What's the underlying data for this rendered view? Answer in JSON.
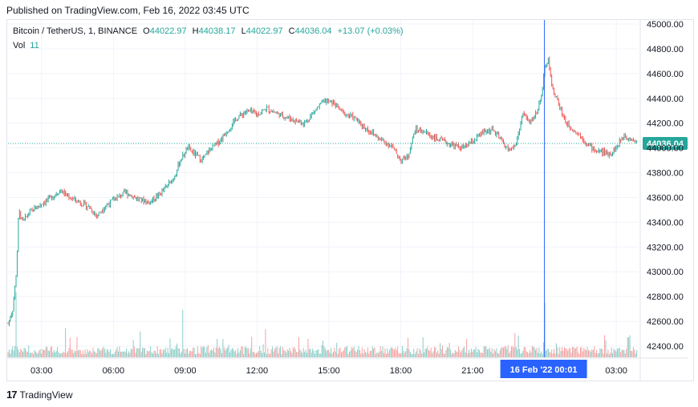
{
  "header": {
    "published": "Published on TradingView.com, Feb 16, 2022 03:45 UTC"
  },
  "legend": {
    "symbol": "Bitcoin / TetherUS, 1, BINANCE",
    "open_label": "O",
    "open": "44022.97",
    "high_label": "H",
    "high": "44038.17",
    "low_label": "L",
    "low": "44022.97",
    "close_label": "C",
    "close": "44036.04",
    "change": "+13.07 (+0.03%)",
    "vol_label": "Vol",
    "vol_value": "11"
  },
  "footer": {
    "logo_mark": "17",
    "brand": "TradingView"
  },
  "colors": {
    "up": "#26a69a",
    "down": "#ef5350",
    "crosshair": "#2962ff",
    "price_badge": "#26a69a",
    "time_badge": "#2962ff"
  },
  "chart_data": {
    "type": "candlestick",
    "price_ticks": [
      "45000.00",
      "44800.00",
      "44600.00",
      "44400.00",
      "44200.00",
      "44000.00",
      "43800.00",
      "43600.00",
      "43400.00",
      "43200.00",
      "43000.00",
      "42800.00",
      "42600.00",
      "42400.00"
    ],
    "ylim": [
      42200,
      45000
    ],
    "x_ticks": [
      {
        "label": "03:00",
        "hour": 3
      },
      {
        "label": "06:00",
        "hour": 6
      },
      {
        "label": "09:00",
        "hour": 9
      },
      {
        "label": "12:00",
        "hour": 12
      },
      {
        "label": "15:00",
        "hour": 15
      },
      {
        "label": "18:00",
        "hour": 18
      },
      {
        "label": "21:00",
        "hour": 21
      },
      {
        "label": "03:00",
        "hour": 27
      }
    ],
    "xlim_hours": [
      1.6,
      27.9
    ],
    "last_price": 44036.04,
    "last_price_label": "44036.04",
    "crosshair_hour": 24.0,
    "crosshair_label": "16 Feb '22   00:01",
    "price_path": [
      [
        1.6,
        42580
      ],
      [
        1.8,
        42700
      ],
      [
        1.95,
        43000
      ],
      [
        2.05,
        43500
      ],
      [
        2.2,
        43400
      ],
      [
        2.5,
        43480
      ],
      [
        3.0,
        43550
      ],
      [
        3.4,
        43600
      ],
      [
        3.8,
        43660
      ],
      [
        4.0,
        43620
      ],
      [
        4.6,
        43560
      ],
      [
        5.0,
        43520
      ],
      [
        5.3,
        43450
      ],
      [
        5.6,
        43520
      ],
      [
        6.0,
        43580
      ],
      [
        6.5,
        43640
      ],
      [
        7.0,
        43590
      ],
      [
        7.5,
        43560
      ],
      [
        8.0,
        43640
      ],
      [
        8.5,
        43750
      ],
      [
        8.8,
        43900
      ],
      [
        9.1,
        44000
      ],
      [
        9.4,
        43950
      ],
      [
        9.7,
        43900
      ],
      [
        10.0,
        43980
      ],
      [
        10.4,
        44050
      ],
      [
        10.8,
        44150
      ],
      [
        11.2,
        44250
      ],
      [
        11.6,
        44300
      ],
      [
        12.0,
        44270
      ],
      [
        12.4,
        44320
      ],
      [
        12.8,
        44280
      ],
      [
        13.2,
        44250
      ],
      [
        13.6,
        44220
      ],
      [
        14.0,
        44200
      ],
      [
        14.4,
        44300
      ],
      [
        14.8,
        44380
      ],
      [
        15.2,
        44360
      ],
      [
        15.6,
        44280
      ],
      [
        16.0,
        44250
      ],
      [
        16.4,
        44180
      ],
      [
        16.8,
        44120
      ],
      [
        17.2,
        44060
      ],
      [
        17.6,
        44020
      ],
      [
        18.0,
        43900
      ],
      [
        18.3,
        43930
      ],
      [
        18.6,
        44150
      ],
      [
        19.0,
        44130
      ],
      [
        19.4,
        44080
      ],
      [
        19.8,
        44050
      ],
      [
        20.2,
        44020
      ],
      [
        20.6,
        44000
      ],
      [
        21.0,
        44050
      ],
      [
        21.4,
        44120
      ],
      [
        21.8,
        44150
      ],
      [
        22.2,
        44060
      ],
      [
        22.5,
        43980
      ],
      [
        22.8,
        44020
      ],
      [
        23.1,
        44280
      ],
      [
        23.4,
        44200
      ],
      [
        23.7,
        44300
      ],
      [
        23.9,
        44450
      ],
      [
        24.0,
        44620
      ],
      [
        24.15,
        44730
      ],
      [
        24.3,
        44500
      ],
      [
        24.6,
        44350
      ],
      [
        24.9,
        44200
      ],
      [
        25.2,
        44150
      ],
      [
        25.5,
        44100
      ],
      [
        25.8,
        44030
      ],
      [
        26.1,
        43980
      ],
      [
        26.4,
        43970
      ],
      [
        26.7,
        43950
      ],
      [
        27.0,
        44000
      ],
      [
        27.3,
        44100
      ],
      [
        27.6,
        44080
      ],
      [
        27.9,
        44036
      ]
    ],
    "volume_spikes": [
      {
        "hour": 1.95,
        "value": 180
      },
      {
        "hour": 4.0,
        "value": 80
      },
      {
        "hour": 8.9,
        "value": 130
      },
      {
        "hour": 22.9,
        "value": 60
      },
      {
        "hour": 24.0,
        "value": 150
      },
      {
        "hour": 27.5,
        "value": 55
      }
    ]
  }
}
